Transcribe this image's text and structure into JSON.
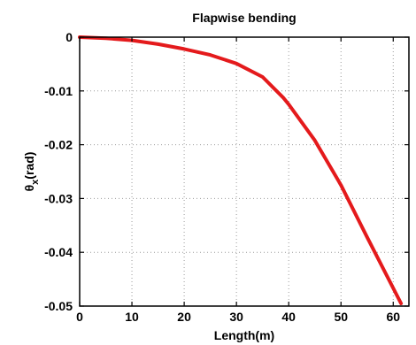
{
  "chart_data": {
    "type": "line",
    "title": "Flapwise bending",
    "xlabel": "Length(m)",
    "ylabel": {
      "symbol": "θ",
      "subscript": "x",
      "unit": "(rad)"
    },
    "xlim": [
      0,
      63
    ],
    "ylim": [
      -0.05,
      0
    ],
    "xticks": [
      0,
      10,
      20,
      30,
      40,
      50,
      60
    ],
    "yticks": [
      0,
      -0.01,
      -0.02,
      -0.03,
      -0.04,
      -0.05
    ],
    "xtick_labels": [
      "0",
      "10",
      "20",
      "30",
      "40",
      "50",
      "60"
    ],
    "ytick_labels": [
      "0",
      "-0.01",
      "-0.02",
      "-0.03",
      "-0.04",
      "-0.05"
    ],
    "grid": true,
    "series": [
      {
        "color": "#e41a1c",
        "x": [
          0,
          5,
          10,
          15,
          20,
          25,
          30,
          35,
          39,
          40,
          45,
          50,
          55,
          61.5
        ],
        "y": [
          0,
          -0.0002,
          -0.0006,
          -0.0013,
          -0.0022,
          -0.0033,
          -0.0049,
          -0.0074,
          -0.0113,
          -0.0125,
          -0.0192,
          -0.0275,
          -0.0372,
          -0.0495
        ]
      }
    ]
  }
}
